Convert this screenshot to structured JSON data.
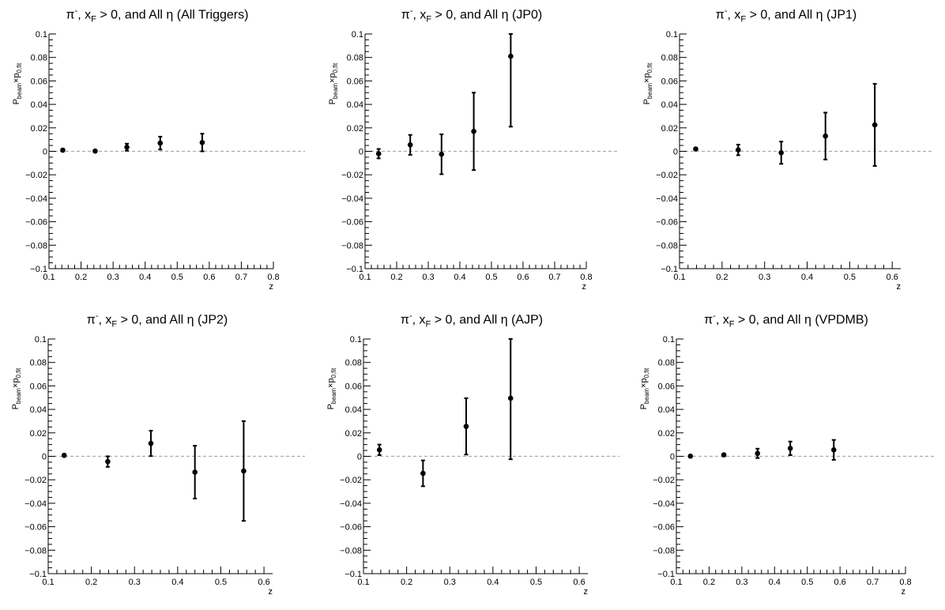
{
  "chart_data": [
    {
      "type": "scatter",
      "title": "π⁻, x_F > 0, and All η (All Triggers)",
      "title_parts": {
        "particle": "π",
        "charge": "-",
        "xf": "x",
        "xf_sub": "F",
        "rest": "> 0, and All η (All Triggers)"
      },
      "xlabel": "z",
      "ylabel": "P_beam×p_0,fit",
      "ylabel_parts": {
        "p": "P",
        "p_sub": "beam",
        "times": "×p",
        "times_sub": "0,fit"
      },
      "xlim": [
        0.1,
        0.8
      ],
      "ylim": [
        -0.1,
        0.1
      ],
      "xticks": [
        "0.1",
        "0.2",
        "0.3",
        "0.4",
        "0.5",
        "0.6",
        "0.7",
        "0.8"
      ],
      "yticks": [
        "−0.1",
        "−0.08",
        "−0.06",
        "−0.04",
        "−0.02",
        "0",
        "0.02",
        "0.04",
        "0.06",
        "0.08",
        "0.1"
      ],
      "points": [
        {
          "x": 0.143,
          "y": 0.001,
          "err": 0.001
        },
        {
          "x": 0.244,
          "y": 0.0002,
          "err": 0.0008
        },
        {
          "x": 0.343,
          "y": 0.0035,
          "err": 0.003
        },
        {
          "x": 0.447,
          "y": 0.007,
          "err": 0.0055
        },
        {
          "x": 0.578,
          "y": 0.0075,
          "err": 0.0075
        }
      ]
    },
    {
      "type": "scatter",
      "title": "π⁻, x_F > 0, and All η (JP0)",
      "title_parts": {
        "particle": "π",
        "charge": "-",
        "xf": "x",
        "xf_sub": "F",
        "rest": "> 0, and All η (JP0)"
      },
      "xlabel": "z",
      "ylabel": "P_beam×p_0,fit",
      "ylabel_parts": {
        "p": "P",
        "p_sub": "beam",
        "times": "×p",
        "times_sub": "0,fit"
      },
      "xlim": [
        0.1,
        0.8
      ],
      "ylim": [
        -0.1,
        0.1
      ],
      "xticks": [
        "0.1",
        "0.2",
        "0.3",
        "0.4",
        "0.5",
        "0.6",
        "0.7",
        "0.8"
      ],
      "yticks": [
        "−0.1",
        "−0.08",
        "−0.06",
        "−0.04",
        "−0.02",
        "0",
        "0.02",
        "0.04",
        "0.06",
        "0.08",
        "0.1"
      ],
      "points": [
        {
          "x": 0.143,
          "y": -0.002,
          "err": 0.004
        },
        {
          "x": 0.243,
          "y": 0.0055,
          "err": 0.0085
        },
        {
          "x": 0.342,
          "y": -0.0025,
          "err": 0.017
        },
        {
          "x": 0.444,
          "y": 0.017,
          "err": 0.033
        },
        {
          "x": 0.561,
          "y": 0.081,
          "err": 0.06
        }
      ]
    },
    {
      "type": "scatter",
      "title": "π⁻, x_F > 0, and All η (JP1)",
      "title_parts": {
        "particle": "π",
        "charge": "-",
        "xf": "x",
        "xf_sub": "F",
        "rest": "> 0, and All η (JP1)"
      },
      "xlabel": "z",
      "ylabel": "P_beam×p_0,fit",
      "ylabel_parts": {
        "p": "P",
        "p_sub": "beam",
        "times": "×p",
        "times_sub": "0,fit"
      },
      "xlim": [
        0.1,
        0.62
      ],
      "ylim": [
        -0.1,
        0.1
      ],
      "xticks": [
        "0.1",
        "0.2",
        "0.3",
        "0.4",
        "0.5",
        "0.6"
      ],
      "yticks": [
        "−0.1",
        "−0.08",
        "−0.06",
        "−0.04",
        "−0.02",
        "0",
        "0.02",
        "0.04",
        "0.06",
        "0.08",
        "0.1"
      ],
      "points": [
        {
          "x": 0.138,
          "y": 0.002,
          "err": 0.001
        },
        {
          "x": 0.238,
          "y": 0.0012,
          "err": 0.0045
        },
        {
          "x": 0.339,
          "y": -0.0012,
          "err": 0.0095
        },
        {
          "x": 0.443,
          "y": 0.013,
          "err": 0.02
        },
        {
          "x": 0.559,
          "y": 0.0225,
          "err": 0.035
        }
      ]
    },
    {
      "type": "scatter",
      "title": "π⁻, x_F > 0, and All η (JP2)",
      "title_parts": {
        "particle": "π",
        "charge": "-",
        "xf": "x",
        "xf_sub": "F",
        "rest": "> 0, and All η (JP2)"
      },
      "xlabel": "z",
      "ylabel": "P_beam×p_0,fit",
      "ylabel_parts": {
        "p": "P",
        "p_sub": "beam",
        "times": "×p",
        "times_sub": "0,fit"
      },
      "xlim": [
        0.1,
        0.62
      ],
      "ylim": [
        -0.1,
        0.1
      ],
      "xticks": [
        "0.1",
        "0.2",
        "0.3",
        "0.4",
        "0.5",
        "0.6"
      ],
      "yticks": [
        "−0.1",
        "−0.08",
        "−0.06",
        "−0.04",
        "−0.02",
        "0",
        "0.02",
        "0.04",
        "0.06",
        "0.08",
        "0.1"
      ],
      "points": [
        {
          "x": 0.137,
          "y": 0.0008,
          "err": 0.0012
        },
        {
          "x": 0.238,
          "y": -0.0045,
          "err": 0.0045
        },
        {
          "x": 0.338,
          "y": 0.011,
          "err": 0.0108
        },
        {
          "x": 0.44,
          "y": -0.0135,
          "err": 0.0225
        },
        {
          "x": 0.553,
          "y": -0.0125,
          "err": 0.0425
        }
      ]
    },
    {
      "type": "scatter",
      "title": "π⁻, x_F > 0, and All η (AJP)",
      "title_parts": {
        "particle": "π",
        "charge": "-",
        "xf": "x",
        "xf_sub": "F",
        "rest": "> 0, and All η (AJP)"
      },
      "xlabel": "z",
      "ylabel": "P_beam×p_0,fit",
      "ylabel_parts": {
        "p": "P",
        "p_sub": "beam",
        "times": "×p",
        "times_sub": "0,fit"
      },
      "xlim": [
        0.1,
        0.62
      ],
      "ylim": [
        -0.1,
        0.1
      ],
      "xticks": [
        "0.1",
        "0.2",
        "0.3",
        "0.4",
        "0.5",
        "0.6"
      ],
      "yticks": [
        "−0.1",
        "−0.08",
        "−0.06",
        "−0.04",
        "−0.02",
        "0",
        "0.02",
        "0.04",
        "0.06",
        "0.08",
        "0.1"
      ],
      "points": [
        {
          "x": 0.137,
          "y": 0.0055,
          "err": 0.0045
        },
        {
          "x": 0.238,
          "y": -0.0145,
          "err": 0.011
        },
        {
          "x": 0.338,
          "y": 0.0255,
          "err": 0.024
        },
        {
          "x": 0.441,
          "y": 0.0495,
          "err": 0.052
        }
      ]
    },
    {
      "type": "scatter",
      "title": "π⁻, x_F > 0, and All η (VPDMB)",
      "title_parts": {
        "particle": "π",
        "charge": "-",
        "xf": "x",
        "xf_sub": "F",
        "rest": "> 0, and All η (VPDMB)"
      },
      "xlabel": "z",
      "ylabel": "P_beam×p_0,fit",
      "ylabel_parts": {
        "p": "P",
        "p_sub": "beam",
        "times": "×p",
        "times_sub": "0,fit"
      },
      "xlim": [
        0.1,
        0.8
      ],
      "ylim": [
        -0.1,
        0.1
      ],
      "xticks": [
        "0.1",
        "0.2",
        "0.3",
        "0.4",
        "0.5",
        "0.6",
        "0.7",
        "0.8"
      ],
      "yticks": [
        "−0.1",
        "−0.08",
        "−0.06",
        "−0.04",
        "−0.02",
        "0",
        "0.02",
        "0.04",
        "0.06",
        "0.08",
        "0.1"
      ],
      "points": [
        {
          "x": 0.143,
          "y": 0.0001,
          "err": 0.0008
        },
        {
          "x": 0.245,
          "y": 0.0012,
          "err": 0.0012
        },
        {
          "x": 0.348,
          "y": 0.0025,
          "err": 0.004
        },
        {
          "x": 0.448,
          "y": 0.0068,
          "err": 0.0058
        },
        {
          "x": 0.581,
          "y": 0.0055,
          "err": 0.0085
        }
      ]
    }
  ]
}
